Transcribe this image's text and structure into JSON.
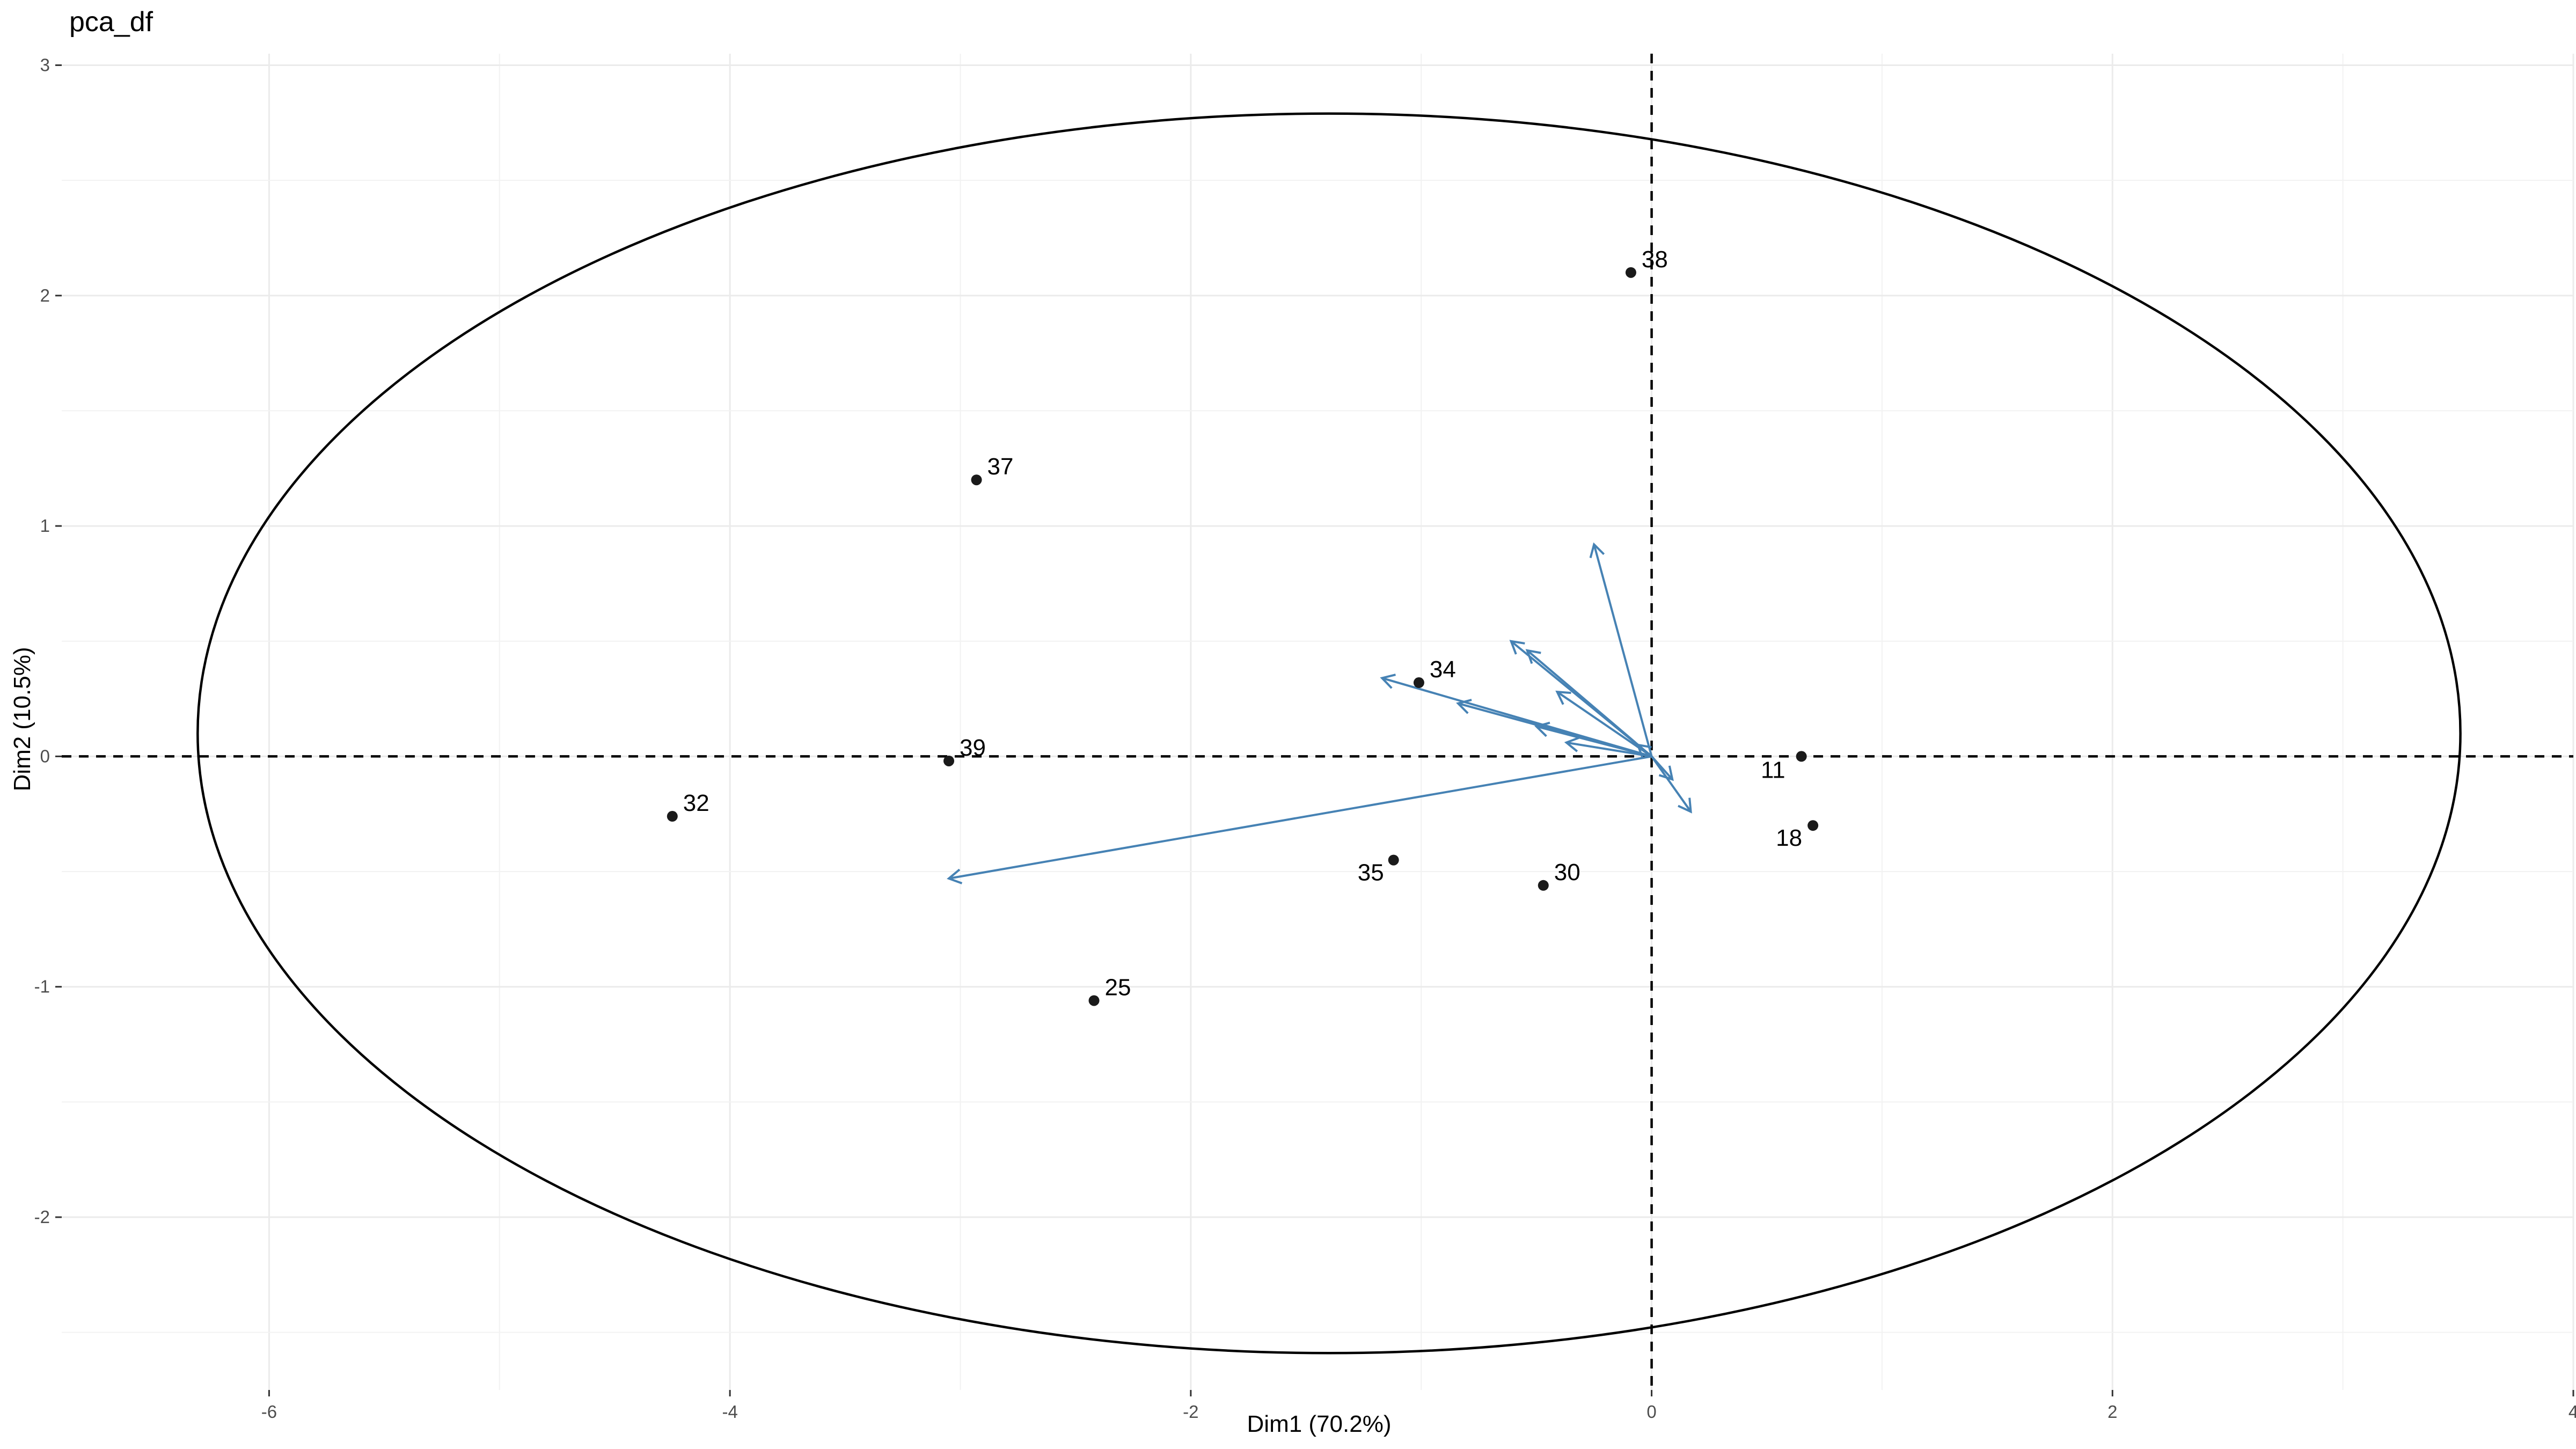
{
  "chart_data": {
    "type": "scatter",
    "title": "pca_df",
    "xlabel": "Dim1 (70.2%)",
    "ylabel": "Dim2 (10.5%)",
    "xlim": [
      -6.9,
      4.0
    ],
    "ylim": [
      -2.75,
      3.05
    ],
    "x_ticks": [
      -6,
      -4,
      -2,
      0,
      2,
      4
    ],
    "y_ticks": [
      -2,
      -1,
      0,
      1,
      2,
      3
    ],
    "grid": true,
    "reference_lines": {
      "x": 0,
      "y": 0,
      "style": "dashed"
    },
    "points": [
      {
        "label": "38",
        "x": -0.09,
        "y": 2.1
      },
      {
        "label": "37",
        "x": -2.93,
        "y": 1.2
      },
      {
        "label": "34",
        "x": -1.01,
        "y": 0.32
      },
      {
        "label": "39",
        "x": -3.05,
        "y": -0.02
      },
      {
        "label": "32",
        "x": -4.25,
        "y": -0.26
      },
      {
        "label": "11",
        "x": 0.65,
        "y": 0.0
      },
      {
        "label": "18",
        "x": 0.7,
        "y": -0.3
      },
      {
        "label": "35",
        "x": -1.12,
        "y": -0.45
      },
      {
        "label": "30",
        "x": -0.47,
        "y": -0.56
      },
      {
        "label": "25",
        "x": -2.42,
        "y": -1.06
      }
    ],
    "loadings": [
      {
        "x": -3.05,
        "y": -0.53
      },
      {
        "x": -1.17,
        "y": 0.34
      },
      {
        "x": -0.25,
        "y": 0.92
      },
      {
        "x": -0.61,
        "y": 0.5
      },
      {
        "x": -0.54,
        "y": 0.46
      },
      {
        "x": -0.84,
        "y": 0.23
      },
      {
        "x": -0.41,
        "y": 0.28
      },
      {
        "x": -0.5,
        "y": 0.13
      },
      {
        "x": -0.37,
        "y": 0.06
      },
      {
        "x": 0.17,
        "y": -0.24
      },
      {
        "x": 0.09,
        "y": -0.1
      },
      {
        "x": -0.06,
        "y": 0.05
      }
    ],
    "ellipse": {
      "center_x": -1.4,
      "center_y": 0.1,
      "radius_x": 4.91,
      "radius_y": 2.69
    },
    "colors": {
      "points": "#1a1a1a",
      "loadings": "#4682b4",
      "ellipse": "#000000"
    }
  }
}
